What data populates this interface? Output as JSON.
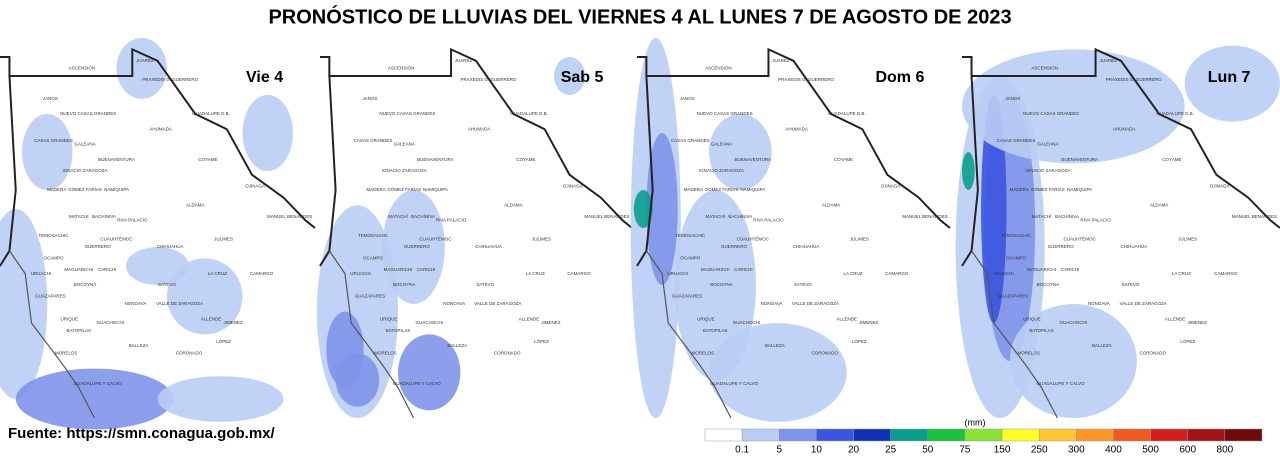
{
  "title": "PRONÓSTICO DE LLUVIAS DEL VIERNES 4 AL LUNES 7 DE AGOSTO DE 2023",
  "panels": [
    {
      "label": "Vie 4"
    },
    {
      "label": "Sab 5"
    },
    {
      "label": "Dom 6"
    },
    {
      "label": "Lun 7"
    }
  ],
  "municipalities": [
    "ASCENSIÓN",
    "JUAREZ",
    "PRAXEDIS G. GUERRERO",
    "JANOS",
    "NUEVO CASAS GRANDES",
    "CASAS GRANDES",
    "GALEANA",
    "AHUMADA",
    "GUADALUPE D.B.",
    "BUENAVENTURA",
    "COYAME",
    "IGNACIO ZARAGOZA",
    "MADERA",
    "GÓMEZ FARÍAS",
    "NAMIQUIPA",
    "OJINAGA",
    "ALDAMA",
    "MANUEL BENAVIDES",
    "MATACHÍ",
    "BACHÍNIVA",
    "RIVA PALACIO",
    "TEMOSACHIC",
    "CUAUHTÉMOC",
    "CHIHUAHUA",
    "GUERRERO",
    "JULIMES",
    "OCAMPO",
    "URUACHI",
    "MAGUARICHI",
    "CARICHI",
    "CAMARGO",
    "LA CRUZ",
    "GUAZAPARES",
    "BOCOYNA",
    "SATEVO",
    "NONOAVA",
    "VALLE DE ZARAGOZA",
    "URIQUE",
    "BATOPILAS",
    "GUACHOCHI",
    "ALLENDE",
    "JIMENEZ",
    "BALLEZA",
    "CORONADO",
    "LÓPEZ",
    "MORELOS",
    "GUADALUPE Y CALVO"
  ],
  "source": "Fuente: https://smn.conagua.gob.mx/",
  "legend": {
    "unit": "(mm)",
    "ticks": [
      0.1,
      5,
      10,
      20,
      25,
      50,
      75,
      150,
      250,
      300,
      400,
      500,
      600,
      800
    ],
    "colors": [
      "#ffffff",
      "#b9cdf4",
      "#7f93ea",
      "#3a55e0",
      "#1030b8",
      "#0a9e8c",
      "#1cc03c",
      "#8ee03a",
      "#ffff28",
      "#ffc832",
      "#ff9628",
      "#f05a1e",
      "#d21e1e",
      "#a01414",
      "#6e0a0a"
    ]
  }
}
